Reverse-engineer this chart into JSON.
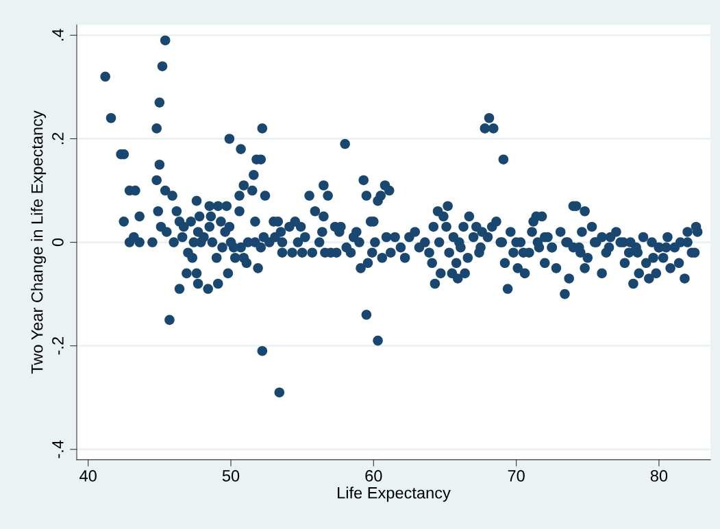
{
  "chart_data": {
    "type": "scatter",
    "xlabel": "Life Expectancy",
    "ylabel": "Two Year Change in Life Expectancy",
    "xlim": [
      39.2,
      83.6
    ],
    "ylim": [
      -0.42,
      0.42
    ],
    "xticks": [
      40,
      50,
      60,
      70,
      80
    ],
    "yticks": [
      {
        "value": -0.4,
        "label": "-.4"
      },
      {
        "value": -0.2,
        "label": "-.2"
      },
      {
        "value": 0,
        "label": "0"
      },
      {
        "value": 0.2,
        "label": ".2"
      },
      {
        "value": 0.4,
        "label": ".4"
      }
    ],
    "grid": "y",
    "marker": "circle",
    "series": [
      {
        "color": "#1a476f",
        "x": [
          41.2,
          41.6,
          42.3,
          42.5,
          42.5,
          42.9,
          42.9,
          43.3,
          43.2,
          43.6,
          43.6,
          44.5,
          44.8,
          44.8,
          45.0,
          44.9,
          45.0,
          45.1,
          45.2,
          45.4,
          45.4,
          45.5,
          45.7,
          45.9,
          46.0,
          46.2,
          46.4,
          46.4,
          46.6,
          46.7,
          46.9,
          47.0,
          47.2,
          47.3,
          47.4,
          47.6,
          47.6,
          47.7,
          47.7,
          47.8,
          47.9,
          48.1,
          48.4,
          48.5,
          48.5,
          48.6,
          48.7,
          49.0,
          49.1,
          49.1,
          49.3,
          49.4,
          49.6,
          49.7,
          49.8,
          49.9,
          49.9,
          50.0,
          50.2,
          50.3,
          50.6,
          50.7,
          50.6,
          50.7,
          50.9,
          51.1,
          50.9,
          51.2,
          51.5,
          51.6,
          51.7,
          51.8,
          52.1,
          51.7,
          51.9,
          52.1,
          52.2,
          52.2,
          52.4,
          52.3,
          52.7,
          53.0,
          53.1,
          53.3,
          53.4,
          53.5,
          53.6,
          53.6,
          54.1,
          54.3,
          54.5,
          54.7,
          54.9,
          55.0,
          55.2,
          55.5,
          55.7,
          55.9,
          56.2,
          56.4,
          56.5,
          56.5,
          56.6,
          56.8,
          57.0,
          57.3,
          57.4,
          57.6,
          57.7,
          58.0,
          58.1,
          58.4,
          58.6,
          58.8,
          59.0,
          59.1,
          59.3,
          59.5,
          59.5,
          59.6,
          59.8,
          59.9,
          60.0,
          60.1,
          60.3,
          60.3,
          60.5,
          60.6,
          60.8,
          60.9,
          61.1,
          61.2,
          61.5,
          61.9,
          62.2,
          62.5,
          62.9,
          63.2,
          63.6,
          63.9,
          64.1,
          64.2,
          64.3,
          64.5,
          64.6,
          64.7,
          64.9,
          65.1,
          65.2,
          65.3,
          65.5,
          65.6,
          65.8,
          65.9,
          66.1,
          66.3,
          66.4,
          66.6,
          66.7,
          67.0,
          67.2,
          67.4,
          67.6,
          67.8,
          68.1,
          68.3,
          68.4,
          68.6,
          68.9,
          69.1,
          69.2,
          69.4,
          69.6,
          69.8,
          70.1,
          70.3,
          70.6,
          70.9,
          71.1,
          71.2,
          71.4,
          71.6,
          71.8,
          72.0,
          72.2,
          72.5,
          72.8,
          73.1,
          73.4,
          73.6,
          73.7,
          74.0,
          74.2,
          74.4,
          74.6,
          74.8,
          74.8,
          75.0,
          75.3,
          75.6,
          76.0,
          76.3,
          76.6,
          77.0,
          77.3,
          77.6,
          77.9,
          78.2,
          78.4,
          78.6,
          78.9,
          79.1,
          79.3,
          79.6,
          79.8,
          80.0,
          80.3,
          80.6,
          80.8,
          81.1,
          81.4,
          81.8,
          82.0,
          82.3,
          82.6,
          82.7,
          66.0,
          67.5,
          69.0,
          70.5,
          71.5,
          72.5,
          73.5,
          74.5,
          75.5,
          76.5,
          77.5,
          78.5,
          79.5,
          80.5,
          81.5,
          82.5,
          68.0,
          70.0,
          72.0,
          74.0,
          76.0,
          78.0,
          80.0,
          82.0
        ],
        "values": [
          0.32,
          0.24,
          0.17,
          0.17,
          0.04,
          0.1,
          0.0,
          0.1,
          0.01,
          0.05,
          0.0,
          0.0,
          0.12,
          0.22,
          0.27,
          0.06,
          0.15,
          0.03,
          0.34,
          0.39,
          0.1,
          0.02,
          -0.15,
          0.09,
          0.0,
          0.06,
          -0.09,
          0.04,
          0.01,
          0.03,
          -0.06,
          -0.02,
          0.04,
          -0.03,
          0.0,
          -0.06,
          0.08,
          -0.08,
          0.02,
          0.05,
          0.0,
          0.01,
          -0.09,
          0.03,
          0.07,
          0.05,
          0.0,
          -0.03,
          0.07,
          -0.08,
          0.04,
          -0.01,
          0.02,
          0.07,
          -0.06,
          0.2,
          0.03,
          0.0,
          -0.01,
          -0.03,
          0.09,
          0.18,
          0.06,
          -0.01,
          -0.03,
          -0.04,
          0.11,
          0.0,
          0.1,
          0.13,
          0.04,
          0.16,
          0.16,
          0.0,
          -0.05,
          -0.01,
          0.22,
          -0.21,
          0.09,
          0.01,
          0.0,
          0.04,
          0.01,
          0.04,
          -0.29,
          0.02,
          0.0,
          -0.02,
          0.03,
          -0.02,
          0.04,
          0.0,
          0.03,
          -0.02,
          0.01,
          0.09,
          -0.02,
          0.06,
          0.0,
          0.02,
          0.11,
          0.05,
          -0.02,
          0.09,
          -0.02,
          0.03,
          -0.02,
          0.02,
          0.03,
          0.19,
          -0.01,
          -0.02,
          0.01,
          0.02,
          0.0,
          -0.05,
          0.12,
          -0.14,
          0.09,
          -0.04,
          0.04,
          -0.02,
          0.04,
          0.0,
          -0.19,
          0.08,
          0.09,
          -0.03,
          0.11,
          0.01,
          0.1,
          -0.02,
          0.01,
          -0.01,
          -0.03,
          0.01,
          0.02,
          -0.01,
          0.0,
          -0.02,
          -0.04,
          0.03,
          -0.08,
          0.06,
          0.0,
          -0.06,
          0.05,
          0.03,
          0.07,
          -0.02,
          -0.06,
          0.01,
          -0.04,
          -0.07,
          -0.01,
          0.03,
          -0.06,
          -0.03,
          0.05,
          0.01,
          0.03,
          -0.02,
          0.02,
          0.22,
          0.24,
          0.03,
          0.22,
          0.04,
          0.0,
          0.16,
          -0.04,
          -0.09,
          0.02,
          -0.02,
          -0.05,
          0.0,
          -0.06,
          -0.02,
          0.02,
          0.04,
          0.05,
          -0.01,
          0.05,
          -0.04,
          0.01,
          -0.01,
          -0.05,
          0.02,
          -0.1,
          0.0,
          -0.07,
          0.07,
          0.07,
          -0.01,
          0.02,
          0.06,
          -0.05,
          -0.03,
          0.03,
          0.0,
          -0.06,
          -0.02,
          0.01,
          0.02,
          0.0,
          -0.04,
          -0.02,
          -0.08,
          -0.01,
          -0.06,
          0.01,
          -0.04,
          -0.07,
          -0.03,
          -0.06,
          -0.01,
          -0.03,
          0.01,
          -0.05,
          -0.01,
          -0.04,
          -0.07,
          0.02,
          -0.02,
          0.03,
          0.02,
          0.0,
          -0.01,
          0.0,
          -0.02,
          0.0,
          -0.01,
          0.0,
          -0.02,
          0.0,
          -0.01,
          0.0,
          -0.02,
          0.0,
          -0.01,
          0.0,
          -0.02,
          0.01,
          0.0,
          0.01,
          -0.01,
          0.01,
          0.0,
          -0.01,
          0.0
        ]
      }
    ]
  }
}
